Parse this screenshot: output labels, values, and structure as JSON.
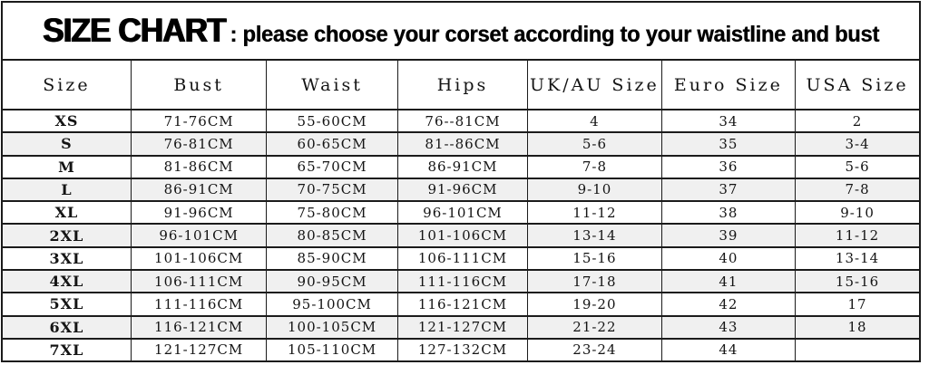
{
  "title": {
    "main": "SIZE CHART",
    "subtitle": ": please choose your corset according to your waistline and bust"
  },
  "chart_data": {
    "type": "table",
    "title": "SIZE CHART: please choose your corset according to your waistline and bust",
    "columns": [
      "Size",
      "Bust",
      "Waist",
      "Hips",
      "UK/AU Size",
      "Euro Size",
      "USA Size"
    ],
    "rows": [
      [
        "XS",
        "71-76CM",
        "55-60CM",
        "76--81CM",
        "4",
        "34",
        "2"
      ],
      [
        "S",
        "76-81CM",
        "60-65CM",
        "81--86CM",
        "5-6",
        "35",
        "3-4"
      ],
      [
        "M",
        "81-86CM",
        "65-70CM",
        "86-91CM",
        "7-8",
        "36",
        "5-6"
      ],
      [
        "L",
        "86-91CM",
        "70-75CM",
        "91-96CM",
        "9-10",
        "37",
        "7-8"
      ],
      [
        "XL",
        "91-96CM",
        "75-80CM",
        "96-101CM",
        "11-12",
        "38",
        "9-10"
      ],
      [
        "2XL",
        "96-101CM",
        "80-85CM",
        "101-106CM",
        "13-14",
        "39",
        "11-12"
      ],
      [
        "3XL",
        "101-106CM",
        "85-90CM",
        "106-111CM",
        "15-16",
        "40",
        "13-14"
      ],
      [
        "4XL",
        "106-111CM",
        "90-95CM",
        "111-116CM",
        "17-18",
        "41",
        "15-16"
      ],
      [
        "5XL",
        "111-116CM",
        "95-100CM",
        "116-121CM",
        "19-20",
        "42",
        "17"
      ],
      [
        "6XL",
        "116-121CM",
        "100-105CM",
        "121-127CM",
        "21-22",
        "43",
        "18"
      ],
      [
        "7XL",
        "121-127CM",
        "105-110CM",
        "127-132CM",
        "23-24",
        "44",
        ""
      ]
    ],
    "layout": {
      "striped_rows": "even rows light gray",
      "grid": "on",
      "column_width_pct": [
        14.0,
        14.8,
        14.3,
        14.2,
        14.6,
        14.6,
        13.5
      ]
    }
  },
  "colors": {
    "border": "#1b1b1b",
    "stripe": "#f0f0f0",
    "text": "#141414",
    "background": "#ffffff"
  }
}
